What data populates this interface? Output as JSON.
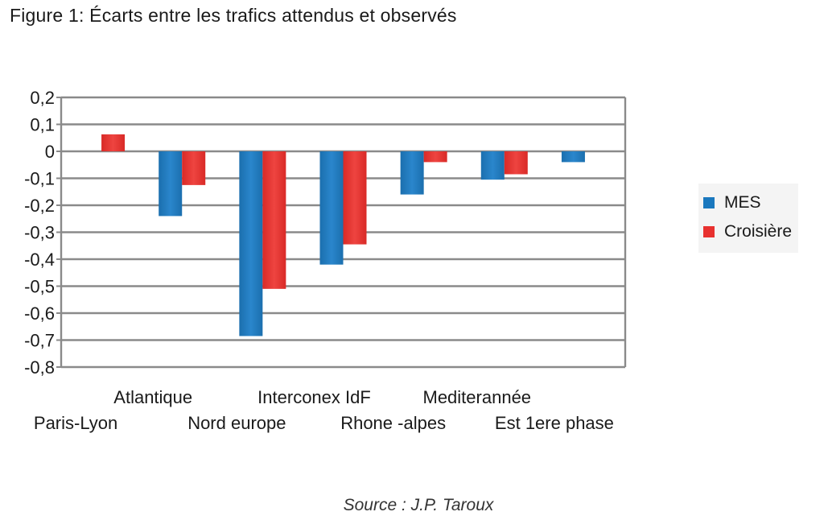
{
  "figure": {
    "title": "Figure 1: Écarts entre les trafics attendus et observés",
    "source": "Source : J.P. Taroux"
  },
  "chart_data": {
    "type": "bar",
    "title": "Figure 1: Écarts entre les trafics attendus et observés",
    "xlabel": "",
    "ylabel": "",
    "ylim": [
      -0.8,
      0.2
    ],
    "yticks": [
      0.2,
      0.1,
      0,
      -0.1,
      -0.2,
      -0.3,
      -0.4,
      -0.5,
      -0.6,
      -0.7,
      -0.8
    ],
    "ytick_labels": [
      "0,2",
      "0,1",
      "0",
      "-0,1",
      "-0,2",
      "-0,3",
      "-0,4",
      "-0,5",
      "-0,6",
      "-0,7",
      "-0,8"
    ],
    "grid": true,
    "legend_position": "right",
    "categories": [
      "Paris-Lyon",
      "Atlantique",
      "Nord europe",
      "Interconex IdF",
      "Rhone -alpes",
      "Mediterannée",
      "Est 1ere phase"
    ],
    "series": [
      {
        "name": "MES",
        "color": "#1a78be",
        "values": [
          null,
          -0.24,
          -0.685,
          -0.42,
          -0.16,
          -0.105,
          -0.04
        ]
      },
      {
        "name": "Croisière",
        "color": "#e8312f",
        "values": [
          0.063,
          -0.125,
          -0.51,
          -0.345,
          -0.04,
          -0.085,
          null
        ]
      }
    ]
  }
}
